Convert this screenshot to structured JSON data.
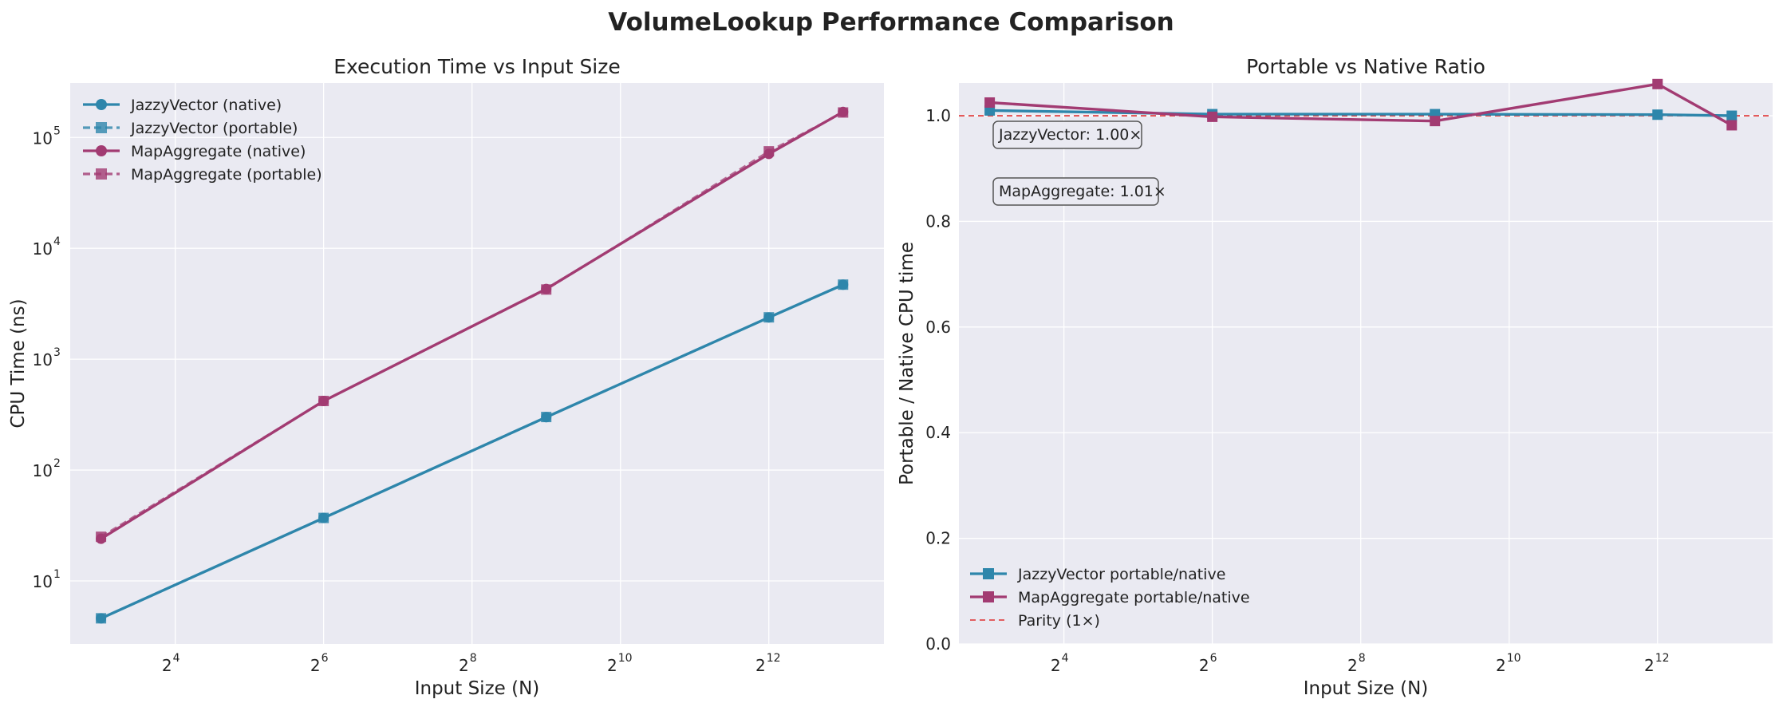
{
  "figure": {
    "title": "VolumeLookup Performance Comparison"
  },
  "colors": {
    "jazzy": "#2E86AB",
    "map": "#A23B72",
    "parity": "#E03030",
    "plot_bg": "#EAEAF2",
    "grid": "#FFFFFF"
  },
  "chart_data": [
    {
      "type": "line",
      "title": "Execution Time vs Input Size",
      "xlabel": "Input Size (N)",
      "ylabel": "CPU Time (ns)",
      "x_scale": "log2",
      "y_scale": "log10",
      "x": [
        8,
        64,
        512,
        4096,
        8192
      ],
      "x_tick_labels": [
        {
          "base": "2",
          "exp": "4"
        },
        {
          "base": "2",
          "exp": "6"
        },
        {
          "base": "2",
          "exp": "8"
        },
        {
          "base": "2",
          "exp": "10"
        },
        {
          "base": "2",
          "exp": "12"
        }
      ],
      "y_tick_labels": [
        {
          "base": "10",
          "exp": "1"
        },
        {
          "base": "10",
          "exp": "2"
        },
        {
          "base": "10",
          "exp": "3"
        },
        {
          "base": "10",
          "exp": "4"
        },
        {
          "base": "10",
          "exp": "5"
        }
      ],
      "xlim": [
        6,
        12000
      ],
      "ylim": [
        2.7,
        310000
      ],
      "grid": true,
      "legend_position": "top-left",
      "series": [
        {
          "name": "JazzyVector (native)",
          "values": [
            4.6,
            37,
            300,
            2380,
            4700
          ],
          "color_key": "jazzy",
          "marker": "circle",
          "dash": "solid"
        },
        {
          "name": "JazzyVector (portable)",
          "values": [
            4.6,
            37,
            301,
            2385,
            4705
          ],
          "color_key": "jazzy",
          "marker": "square",
          "dash": "dashed"
        },
        {
          "name": "MapAggregate (native)",
          "values": [
            24,
            420,
            4300,
            71000,
            170000
          ],
          "color_key": "map",
          "marker": "circle",
          "dash": "solid"
        },
        {
          "name": "MapAggregate (portable)",
          "values": [
            25,
            420,
            4250,
            75000,
            168000
          ],
          "color_key": "map",
          "marker": "square",
          "dash": "dashed"
        }
      ]
    },
    {
      "type": "line",
      "title": "Portable vs Native Ratio",
      "xlabel": "Input Size (N)",
      "ylabel": "Portable / Native CPU time",
      "x_scale": "log2",
      "y_scale": "linear",
      "x": [
        8,
        64,
        512,
        4096,
        8192
      ],
      "x_tick_labels": [
        {
          "base": "2",
          "exp": "4"
        },
        {
          "base": "2",
          "exp": "6"
        },
        {
          "base": "2",
          "exp": "8"
        },
        {
          "base": "2",
          "exp": "10"
        },
        {
          "base": "2",
          "exp": "12"
        }
      ],
      "y_ticks": [
        0.0,
        0.2,
        0.4,
        0.6,
        0.8,
        1.0
      ],
      "y_tick_labels": [
        "0.0",
        "0.2",
        "0.4",
        "0.6",
        "0.8",
        "1.0"
      ],
      "xlim": [
        6,
        12000
      ],
      "ylim": [
        0,
        1.062
      ],
      "grid": true,
      "legend_position": "bottom-left",
      "series": [
        {
          "name": "JazzyVector portable/native",
          "values": [
            1.01,
            1.003,
            1.003,
            1.002,
            1.0
          ],
          "color_key": "jazzy",
          "marker": "square"
        },
        {
          "name": "MapAggregate portable/native",
          "values": [
            1.025,
            0.998,
            0.99,
            1.06,
            0.982
          ],
          "color_key": "map",
          "marker": "square"
        }
      ],
      "reference_line": {
        "name": "Parity (1×)",
        "value": 1.0,
        "color_key": "parity"
      },
      "annotations": [
        "JazzyVector: 1.00×",
        "MapAggregate: 1.01×"
      ]
    }
  ]
}
